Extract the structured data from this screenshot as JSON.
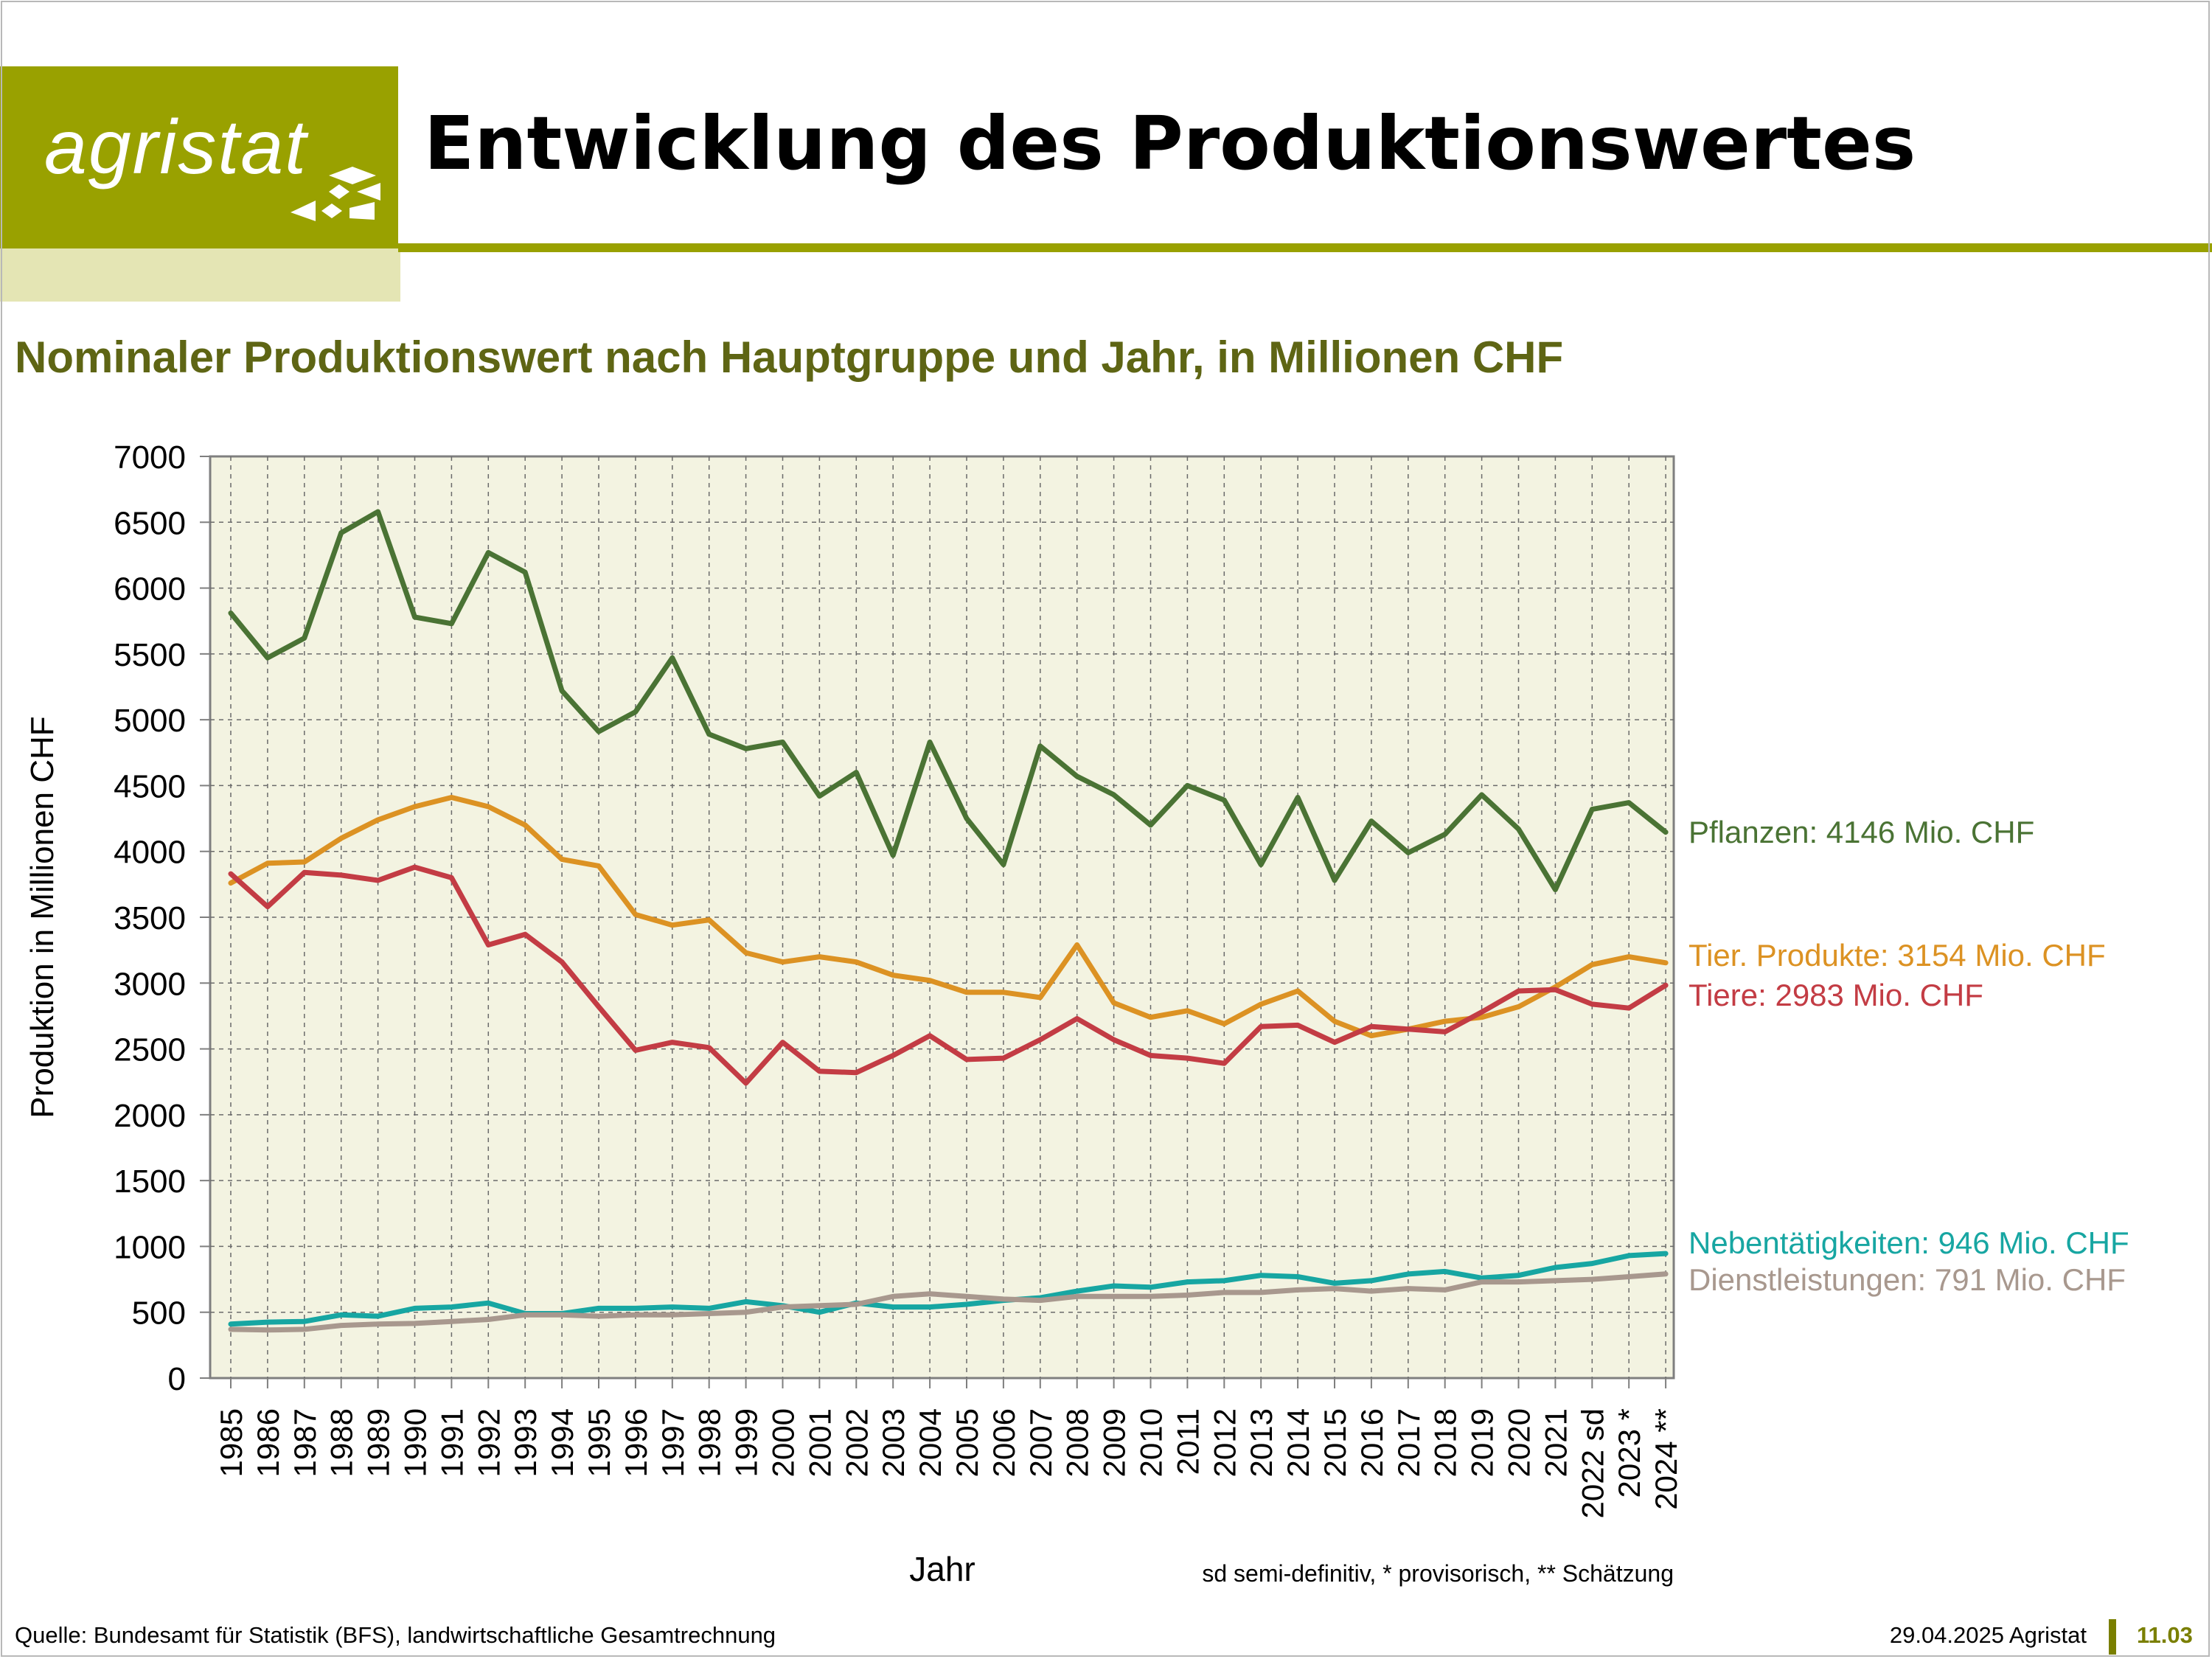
{
  "brand": {
    "logo_text": "agristat",
    "colors": {
      "olive": "#99a100",
      "olive_light": "#e4e5b4",
      "subtitle": "#5e6514"
    }
  },
  "header": {
    "title": "Entwicklung des Produktionswertes",
    "subtitle": "Nominaler Produktionswert nach Hauptgruppe und Jahr, in Millionen CHF"
  },
  "footer": {
    "source": "Quelle: Bundesamt für Statistik (BFS), landwirtschaftliche Gesamtrechnung",
    "date": "29.04.2025 Agristat",
    "page": "11.03"
  },
  "note": "sd semi-definitiv, * provisorisch, ** Schätzung",
  "chart_data": {
    "type": "line",
    "xlabel": "Jahr",
    "ylabel": "Produktion in Millionen CHF",
    "ylim": [
      0,
      7000
    ],
    "yticks": [
      0,
      500,
      1000,
      1500,
      2000,
      2500,
      3000,
      3500,
      4000,
      4500,
      5000,
      5500,
      6000,
      6500,
      7000
    ],
    "grid": true,
    "legend": "labels at right end of lines",
    "background": "#f3f3e1",
    "categories": [
      "1985",
      "1986",
      "1987",
      "1988",
      "1989",
      "1990",
      "1991",
      "1992",
      "1993",
      "1994",
      "1995",
      "1996",
      "1997",
      "1998",
      "1999",
      "2000",
      "2001",
      "2002",
      "2003",
      "2004",
      "2005",
      "2006",
      "2007",
      "2008",
      "2009",
      "2010",
      "2011",
      "2012",
      "2013",
      "2014",
      "2015",
      "2016",
      "2017",
      "2018",
      "2019",
      "2020",
      "2021",
      "2022 sd",
      "2023 *",
      "2024 **"
    ],
    "series": [
      {
        "name": "Pflanzen",
        "label": "Pflanzen: 4146 Mio. CHF",
        "color": "#4a7334",
        "values": [
          5810,
          5470,
          5620,
          6420,
          6580,
          5780,
          5730,
          6270,
          6120,
          5220,
          4910,
          5060,
          5470,
          4890,
          4780,
          4830,
          4420,
          4600,
          3970,
          4830,
          4250,
          3900,
          4800,
          4570,
          4430,
          4200,
          4500,
          4390,
          3900,
          4410,
          3780,
          4230,
          3990,
          4130,
          4430,
          4170,
          3710,
          4320,
          4370,
          4146
        ]
      },
      {
        "name": "Tier. Produkte",
        "label": "Tier. Produkte: 3154 Mio. CHF",
        "color": "#dc9223",
        "values": [
          3760,
          3910,
          3920,
          4100,
          4240,
          4340,
          4410,
          4340,
          4200,
          3940,
          3890,
          3520,
          3440,
          3480,
          3230,
          3160,
          3200,
          3160,
          3060,
          3020,
          2930,
          2930,
          2890,
          3290,
          2850,
          2740,
          2790,
          2690,
          2840,
          2940,
          2710,
          2600,
          2650,
          2710,
          2740,
          2820,
          2970,
          3140,
          3200,
          3154
        ]
      },
      {
        "name": "Tiere",
        "label": "Tiere: 2983 Mio. CHF",
        "color": "#c33c44",
        "values": [
          3830,
          3580,
          3840,
          3820,
          3780,
          3880,
          3800,
          3290,
          3370,
          3160,
          2820,
          2490,
          2550,
          2510,
          2240,
          2550,
          2330,
          2320,
          2450,
          2600,
          2420,
          2430,
          2570,
          2730,
          2570,
          2450,
          2430,
          2390,
          2670,
          2680,
          2550,
          2670,
          2650,
          2630,
          2780,
          2940,
          2950,
          2840,
          2810,
          2983
        ]
      },
      {
        "name": "Nebentätigkeiten",
        "label": "Nebentätigkeiten: 946 Mio. CHF",
        "color": "#17a6a2",
        "values": [
          410,
          425,
          430,
          480,
          470,
          530,
          540,
          570,
          490,
          490,
          530,
          530,
          540,
          530,
          580,
          550,
          500,
          570,
          540,
          540,
          560,
          590,
          610,
          660,
          700,
          690,
          730,
          740,
          780,
          770,
          720,
          740,
          790,
          810,
          760,
          780,
          840,
          870,
          930,
          946
        ]
      },
      {
        "name": "Dienstleistungen",
        "label": "Dienstleistungen: 791 Mio. CHF",
        "color": "#a8988e",
        "values": [
          370,
          365,
          370,
          400,
          410,
          415,
          430,
          445,
          480,
          480,
          470,
          480,
          480,
          490,
          500,
          540,
          550,
          560,
          620,
          640,
          620,
          600,
          590,
          620,
          620,
          620,
          630,
          650,
          650,
          670,
          680,
          660,
          680,
          670,
          730,
          730,
          740,
          750,
          770,
          791
        ]
      }
    ]
  }
}
